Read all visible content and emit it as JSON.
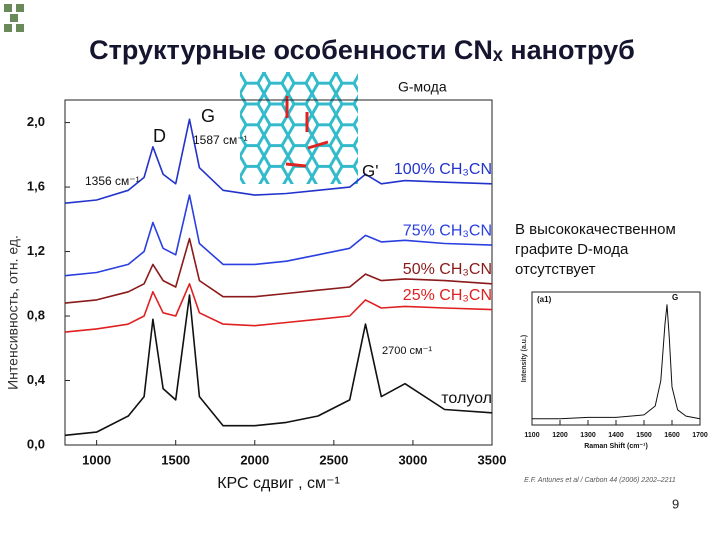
{
  "title": "Структурные особенности CNₓ нанотруб",
  "side_note": [
    "В высококачественном",
    "графите D-мода",
    "отсутствует"
  ],
  "citation": "E.F. Antunes et al / Carbon 44 (2006) 2202–2211",
  "page_number": "9",
  "chart_data": [
    {
      "type": "line",
      "x_label": "КРС сдвиг , см⁻¹",
      "y_label": "Интенсивность, отн. ед.",
      "annotations": [
        "G-мода",
        "D",
        "G",
        "1587 см⁻¹",
        "1356 см⁻¹",
        "G'",
        "2700 см⁻¹"
      ],
      "x": [
        800,
        1000,
        1200,
        1300,
        1356,
        1420,
        1500,
        1587,
        1650,
        1800,
        2000,
        2200,
        2400,
        2600,
        2700,
        2800,
        2950,
        3200,
        3500
      ],
      "series": [
        {
          "name": "100% CH₃CN",
          "color": "#2233cc",
          "values": [
            1.5,
            1.52,
            1.58,
            1.66,
            1.85,
            1.68,
            1.62,
            2.02,
            1.72,
            1.58,
            1.55,
            1.56,
            1.58,
            1.6,
            1.68,
            1.62,
            1.64,
            1.63,
            1.62
          ]
        },
        {
          "name": "75% CH₃CN",
          "color": "#2a3fe0",
          "values": [
            1.05,
            1.07,
            1.12,
            1.2,
            1.38,
            1.22,
            1.18,
            1.55,
            1.25,
            1.12,
            1.12,
            1.14,
            1.18,
            1.22,
            1.3,
            1.26,
            1.27,
            1.25,
            1.24
          ]
        },
        {
          "name": "50% CH₃CN",
          "color": "#8b1a1a",
          "values": [
            0.88,
            0.9,
            0.95,
            1.0,
            1.12,
            1.02,
            0.98,
            1.28,
            1.02,
            0.92,
            0.92,
            0.94,
            0.96,
            0.98,
            1.06,
            1.02,
            1.03,
            1.02,
            1.0
          ]
        },
        {
          "name": "25% CH₃CN",
          "color": "#e02020",
          "values": [
            0.7,
            0.72,
            0.75,
            0.8,
            0.95,
            0.82,
            0.8,
            1.0,
            0.82,
            0.75,
            0.74,
            0.76,
            0.78,
            0.8,
            0.9,
            0.85,
            0.86,
            0.85,
            0.84
          ]
        },
        {
          "name": "толуол",
          "color": "#111111",
          "values": [
            0.06,
            0.08,
            0.18,
            0.3,
            0.78,
            0.35,
            0.28,
            0.93,
            0.3,
            0.12,
            0.12,
            0.14,
            0.18,
            0.28,
            0.75,
            0.3,
            0.38,
            0.22,
            0.2
          ]
        }
      ],
      "xlim": [
        800,
        3500
      ],
      "xticks": [
        1000,
        1500,
        2000,
        2500,
        3000,
        3500
      ],
      "ylim": [
        0,
        2.14
      ],
      "yticks": [
        {
          "value": 0,
          "label": "0,0"
        },
        {
          "value": 0.4,
          "label": "0,4"
        },
        {
          "value": 0.8,
          "label": "0,8"
        },
        {
          "value": 1.2,
          "label": "1,2"
        },
        {
          "value": 1.6,
          "label": "1,6"
        },
        {
          "value": 2,
          "label": "2,0"
        }
      ]
    },
    {
      "type": "line",
      "tag": "(a1)",
      "peak_label": "G",
      "x_label": "Raman Shift (cm⁻¹)",
      "y_label": "Intensity (a.u.)",
      "x": [
        1100,
        1200,
        1300,
        1400,
        1500,
        1540,
        1560,
        1575,
        1582,
        1590,
        1600,
        1620,
        1650,
        1700
      ],
      "series": [
        {
          "color": "#111111",
          "values": [
            0.05,
            0.05,
            0.06,
            0.06,
            0.08,
            0.15,
            0.35,
            0.8,
            0.95,
            0.7,
            0.3,
            0.12,
            0.07,
            0.05
          ]
        }
      ],
      "xlim": [
        1100,
        1700
      ],
      "xticks": [
        1100,
        1200,
        1300,
        1400,
        1500,
        1600,
        1700
      ],
      "ylim": [
        0,
        1.05
      ]
    }
  ]
}
